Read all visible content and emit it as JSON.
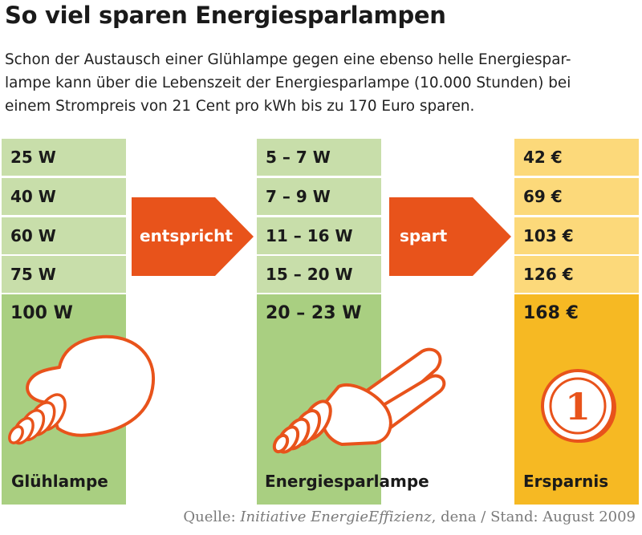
{
  "title": "So viel sparen Energiesparlampen",
  "intro": [
    "Schon der Austausch einer Glühlampe gegen eine ebenso helle Energiespar-",
    "lampe kann über die Lebenszeit der Energiesparlampe (10.000 Stunden) bei",
    "einem Strompreis von 21 Cent pro kWh bis zu 170 Euro sparen."
  ],
  "columns": {
    "gluehlampe": {
      "label": "Glühlampe",
      "values": [
        "25 W",
        "40 W",
        "60 W",
        "75 W",
        "100 W"
      ]
    },
    "energiesparlampe": {
      "label": "Energiesparlampe",
      "values": [
        "5 – 7 W",
        "7 – 9 W",
        "11 – 16 W",
        "15 – 20 W",
        "20 – 23 W"
      ]
    },
    "ersparnis": {
      "label": "Ersparnis",
      "values": [
        "42 €",
        "69 €",
        "103 €",
        "126 €",
        "168 €"
      ]
    }
  },
  "arrows": {
    "first": "entspricht",
    "second": "spart"
  },
  "coin_label": "1",
  "source": {
    "prefix": "Quelle: ",
    "org": "Initiative EnergieEffizienz",
    "suffix": ", dena / Stand: August 2009"
  },
  "colors": {
    "green_light": "#c8deaa",
    "green_dark": "#a9cf81",
    "yellow_light": "#fcd97a",
    "yellow_dark": "#f6b923",
    "orange": "#e8531b",
    "text": "#1a1a1a"
  }
}
